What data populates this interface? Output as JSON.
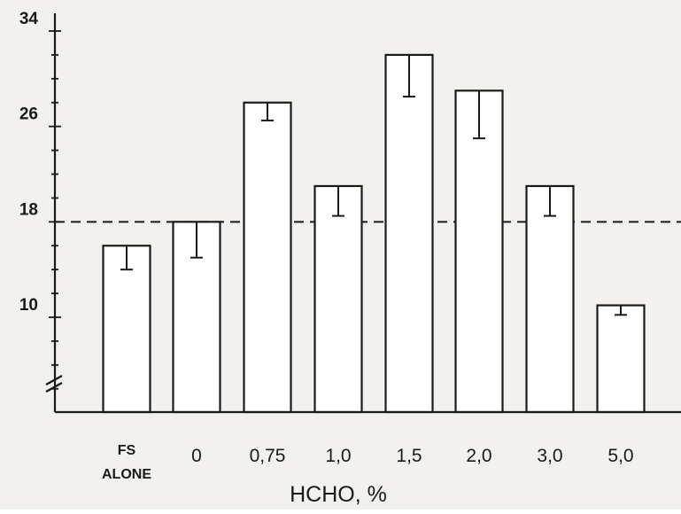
{
  "chart_data": {
    "type": "bar",
    "xlabel": "HCHO, %",
    "ylabel": "",
    "categories": [
      "FS ALONE",
      "0",
      "0,75",
      "1,0",
      "1,5",
      "2,0",
      "3,0",
      "5,0"
    ],
    "category_lines": [
      [
        "FS",
        "ALONE"
      ],
      [
        "0"
      ],
      [
        "0,75"
      ],
      [
        "1,0"
      ],
      [
        "1,5"
      ],
      [
        "2,0"
      ],
      [
        "3,0"
      ],
      [
        "5,0"
      ]
    ],
    "values": [
      16.0,
      18.0,
      28.0,
      21.0,
      32.0,
      29.0,
      21.0,
      11.0
    ],
    "error_low": [
      14.0,
      15.0,
      26.5,
      18.5,
      28.5,
      25.0,
      18.5,
      10.2
    ],
    "y_ticks": [
      10,
      18,
      26,
      34
    ],
    "y_tick_labels": [
      "10",
      "18",
      "26",
      "34"
    ],
    "ylim": [
      2,
      36
    ],
    "axis_break": true,
    "reference_line": {
      "value": 18,
      "style": "dashed"
    },
    "grid": false,
    "legend": "none",
    "colors": {
      "bar_fill": "#ffffff",
      "stroke": "#1a1a1a",
      "background": "#f3f1ed"
    }
  }
}
